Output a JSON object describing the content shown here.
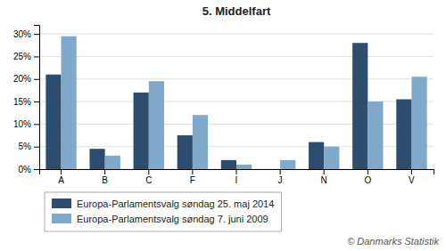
{
  "chart_data": {
    "type": "bar",
    "title": "5. Middelfart",
    "categories": [
      "A",
      "B",
      "C",
      "F",
      "I",
      "J",
      "N",
      "O",
      "V"
    ],
    "series": [
      {
        "name": "Europa-Parlamentsvalg søndag  25. maj 2014",
        "color": "#2d4d6e",
        "values": [
          21.0,
          4.5,
          17.0,
          7.5,
          2.0,
          0.0,
          6.0,
          28.0,
          15.5
        ]
      },
      {
        "name": "Europa-Parlamentsvalg søndag  7. juni 2009",
        "color": "#7fa8cb",
        "values": [
          29.5,
          3.0,
          19.5,
          12.0,
          1.0,
          2.0,
          5.0,
          15.0,
          20.5
        ]
      }
    ],
    "ylim": [
      0,
      32
    ],
    "yticks": [
      {
        "value": 0,
        "label": "0%"
      },
      {
        "value": 5,
        "label": "5%"
      },
      {
        "value": 10,
        "label": "10%"
      },
      {
        "value": 15,
        "label": "15%"
      },
      {
        "value": 20,
        "label": "20%"
      },
      {
        "value": 25,
        "label": "25%"
      },
      {
        "value": 30,
        "label": "30%"
      }
    ],
    "grid": true,
    "legend": "bottom",
    "annotations": [
      "© Danmarks Statistik"
    ]
  }
}
